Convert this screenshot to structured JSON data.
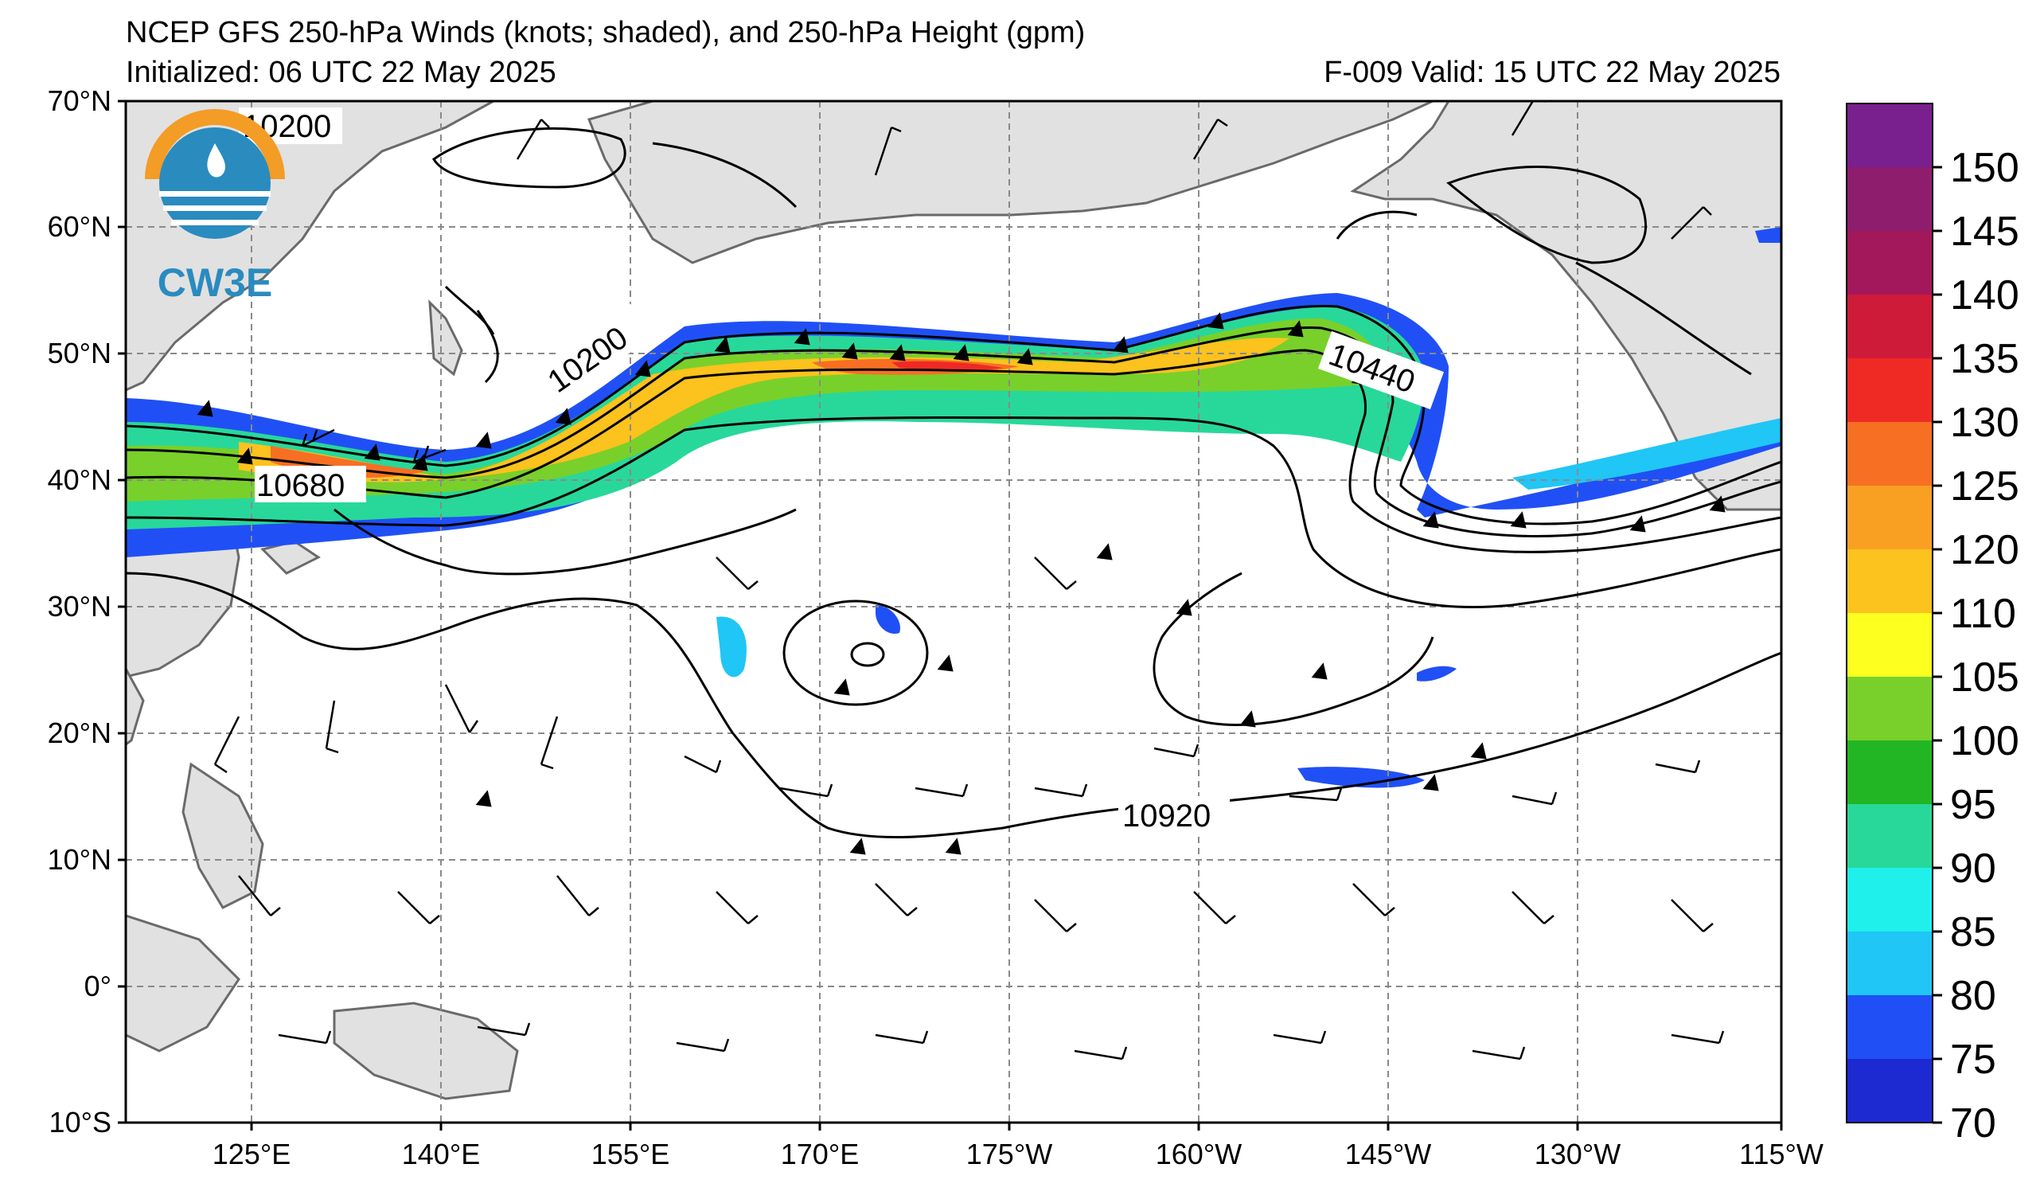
{
  "header": {
    "title": "NCEP GFS 250-hPa Winds (knots; shaded), and 250-hPa Height (gpm)",
    "init": "Initialized: 06 UTC 22 May 2025",
    "valid": "F-009  Valid: 15 UTC 22 May 2025"
  },
  "logo": {
    "text": "CW3E",
    "ring_color": "#f39c26",
    "wave_color": "#2a8bbf"
  },
  "axes": {
    "lat_labels": [
      "70°N",
      "60°N",
      "50°N",
      "40°N",
      "30°N",
      "20°N",
      "10°N",
      "0°",
      "10°S"
    ],
    "lon_labels": [
      "125°E",
      "140°E",
      "155°E",
      "170°E",
      "175°W",
      "160°W",
      "145°W",
      "130°W",
      "115°W"
    ]
  },
  "contour_labels": [
    "10200",
    "10200",
    "10440",
    "10680",
    "10920"
  ],
  "colorbar": {
    "labels": [
      "150",
      "145",
      "140",
      "135",
      "130",
      "125",
      "120",
      "110",
      "105",
      "100",
      "95",
      "90",
      "85",
      "80",
      "75",
      "70"
    ],
    "colors": [
      "#7a1f8e",
      "#8e1d6e",
      "#a3185a",
      "#cf1b3a",
      "#ef2a25",
      "#f76f23",
      "#f9a023",
      "#fcc21d",
      "#fdff1e",
      "#79d02a",
      "#22b624",
      "#28d89a",
      "#1ff0ec",
      "#20c6f5",
      "#2050f5",
      "#1d2ad1"
    ]
  }
}
